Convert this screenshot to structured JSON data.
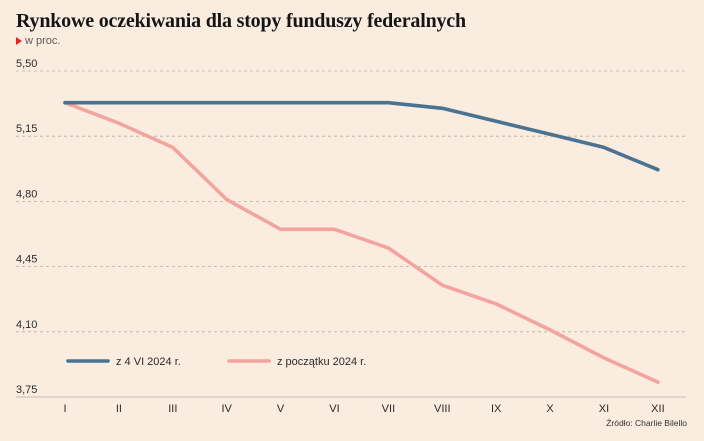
{
  "title": "Rynkowe oczekiwania dla stopy funduszy federalnych",
  "unit_label": "w proc.",
  "source": "Źródło: Charlie Bilello",
  "colors": {
    "background": "#fbece0",
    "series_1": "#4a7391",
    "series_2": "#f4a49f",
    "grid": "#b9aea4",
    "unit_marker": "#e2252c"
  },
  "chart_data": {
    "type": "line",
    "categories": [
      "I",
      "II",
      "III",
      "IV",
      "V",
      "VI",
      "VII",
      "VIII",
      "IX",
      "X",
      "XI",
      "XII"
    ],
    "yticks": [
      "5,50",
      "5,15",
      "4,80",
      "4,45",
      "4,10",
      "3,75"
    ],
    "ylim": [
      3.75,
      5.5
    ],
    "grid": "horizontal-dashed",
    "legend_position": "bottom-left",
    "series": [
      {
        "name": "z 4 VI 2024 r.",
        "color": "#4a7391",
        "values": [
          5.33,
          5.33,
          5.33,
          5.33,
          5.33,
          5.33,
          5.33,
          5.3,
          5.23,
          5.16,
          5.09,
          4.97
        ]
      },
      {
        "name": "z początku 2024 r.",
        "color": "#f4a49f",
        "values": [
          5.33,
          5.22,
          5.09,
          4.81,
          4.65,
          4.65,
          4.55,
          4.35,
          4.25,
          4.11,
          3.96,
          3.83
        ]
      }
    ]
  }
}
